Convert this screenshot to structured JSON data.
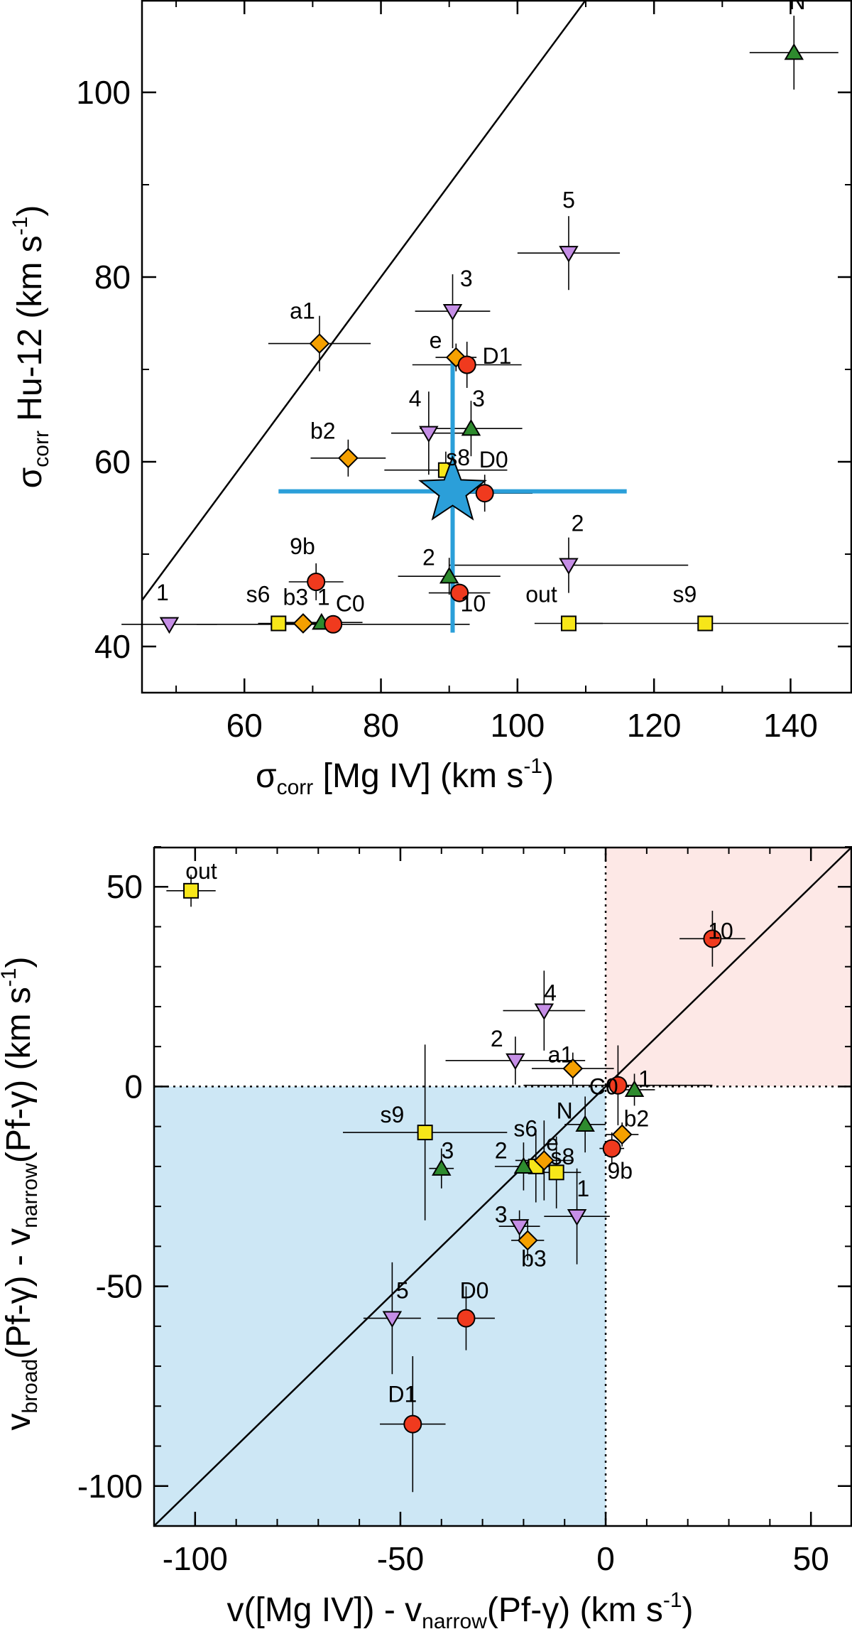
{
  "chart_data": [
    {
      "type": "scatter",
      "xlabel": {
        "main": "σ",
        "sub": "corr",
        "rest": " [Mg IV] (km s",
        "sup": "-1",
        "end": ")"
      },
      "ylabel": {
        "main": "σ",
        "sub": "corr",
        "rest": "  Hu-12 (km s",
        "sup": "-1",
        "end": ")"
      },
      "xlim": [
        45,
        149
      ],
      "ylim": [
        35,
        110
      ],
      "xticks": [
        60,
        80,
        100,
        120,
        140
      ],
      "yticks": [
        40,
        60,
        80,
        100
      ],
      "xminor": 10,
      "yminor": 10,
      "lines": [
        {
          "kind": "one-to-one",
          "from": [
            45,
            45
          ],
          "to": [
            110,
            110
          ]
        }
      ],
      "star": {
        "x": 90.5,
        "y": 56.8,
        "xerr": [
          65,
          116
        ],
        "yerr": [
          41.5,
          71.5
        ],
        "color": "#2b9fd9"
      },
      "points": [
        {
          "label": "N",
          "x": 140.5,
          "y": 104.3,
          "xerr": 6.5,
          "yerr": 4,
          "marker": "triangle-up",
          "color": "#2e8b2e",
          "lx": 141,
          "ly": 109
        },
        {
          "label": "5",
          "x": 107.5,
          "y": 82.6,
          "xerr": 7.5,
          "yerr": 4,
          "marker": "triangle-down",
          "color": "#c58ee6",
          "lx": 107.5,
          "ly": 87.5
        },
        {
          "label": "3",
          "x": 90.5,
          "y": 76.3,
          "xerr": 5.5,
          "yerr": 4,
          "marker": "triangle-down",
          "color": "#c58ee6",
          "lx": 92.5,
          "ly": 79
        },
        {
          "label": "a1",
          "x": 71,
          "y": 72.8,
          "xerr": 7.5,
          "yerr": 3,
          "marker": "diamond",
          "color": "#f5a000",
          "lx": 68.5,
          "ly": 75.5
        },
        {
          "label": "e",
          "x": 91,
          "y": 71.3,
          "xerr": 3,
          "yerr": 1.5,
          "marker": "diamond",
          "color": "#f5a000",
          "lx": 88,
          "ly": 72.3
        },
        {
          "label": "D1",
          "x": 92.6,
          "y": 70.5,
          "xerr": 8,
          "yerr": 2.5,
          "marker": "circle",
          "color": "#f03a1e",
          "lx": 97,
          "ly": 70.6
        },
        {
          "label": "4",
          "x": 87,
          "y": 63.1,
          "xerr": 5.5,
          "yerr": 4.5,
          "marker": "triangle-down",
          "color": "#c58ee6",
          "lx": 85,
          "ly": 66
        },
        {
          "label": "3",
          "x": 93.2,
          "y": 63.6,
          "xerr": 7.5,
          "yerr": 3,
          "marker": "triangle-up",
          "color": "#2e8b2e",
          "lx": 94.3,
          "ly": 66
        },
        {
          "label": "b2",
          "x": 75.2,
          "y": 60.4,
          "xerr": 5.5,
          "yerr": 2,
          "marker": "diamond",
          "color": "#f5a000",
          "lx": 71.5,
          "ly": 62.5
        },
        {
          "label": "s8",
          "x": 89.5,
          "y": 59.1,
          "xerr": 9,
          "yerr": 2,
          "marker": "square",
          "color": "#f7e619",
          "lx": 91.3,
          "ly": 59.6
        },
        {
          "label": "D0",
          "x": 95.2,
          "y": 56.6,
          "xerr": 7,
          "yerr": 2,
          "marker": "circle",
          "color": "#f03a1e",
          "lx": 96.5,
          "ly": 59.4
        },
        {
          "label": "9b",
          "x": 70.5,
          "y": 47,
          "xerr": 4,
          "yerr": 2,
          "marker": "circle",
          "color": "#f03a1e",
          "lx": 68.5,
          "ly": 50
        },
        {
          "label": "2",
          "x": 107.5,
          "y": 48.8,
          "xerr": 17.5,
          "yerr": 3,
          "marker": "triangle-down",
          "color": "#c58ee6",
          "lx": 108.8,
          "ly": 52.5
        },
        {
          "label": "2",
          "x": 90,
          "y": 47.6,
          "xerr": 7.5,
          "yerr": 2,
          "marker": "triangle-up",
          "color": "#2e8b2e",
          "lx": 87,
          "ly": 48.8
        },
        {
          "label": "10",
          "x": 91.5,
          "y": 45.8,
          "xerr": 4.5,
          "yerr": 1,
          "marker": "circle",
          "color": "#f03a1e",
          "lx": 93.5,
          "ly": 43.8
        },
        {
          "label": "1",
          "x": 49,
          "y": 42.4,
          "xerr": 7,
          "yerr": 0,
          "marker": "triangle-down",
          "color": "#c58ee6",
          "lx": 48,
          "ly": 45
        },
        {
          "label": "s6",
          "x": 65,
          "y": 42.5,
          "xerr": 3,
          "yerr": 0,
          "marker": "square",
          "color": "#f7e619",
          "lx": 62,
          "ly": 44.8
        },
        {
          "label": "b3",
          "x": 68.6,
          "y": 42.5,
          "xerr": 4,
          "yerr": 0,
          "marker": "diamond",
          "color": "#f5a000",
          "lx": 67.5,
          "ly": 44.5
        },
        {
          "label": "1",
          "x": 71.3,
          "y": 42.6,
          "xerr": 6,
          "yerr": 0,
          "marker": "triangle-up",
          "color": "#2e8b2e",
          "lx": 71.6,
          "ly": 44.5
        },
        {
          "label": "C0",
          "x": 73,
          "y": 42.4,
          "xerr": 20,
          "yerr": 0,
          "marker": "circle",
          "color": "#f03a1e",
          "lx": 75.5,
          "ly": 43.8
        },
        {
          "label": "out",
          "x": 107.5,
          "y": 42.5,
          "xerr": 5,
          "yerr": 0,
          "marker": "square",
          "color": "#f7e619",
          "lx": 103.5,
          "ly": 44.8
        },
        {
          "label": "s9",
          "x": 127.5,
          "y": 42.5,
          "xerr": 21,
          "yerr": 0,
          "marker": "square",
          "color": "#f7e619",
          "lx": 124.5,
          "ly": 44.8
        }
      ]
    },
    {
      "type": "scatter",
      "xlabel": {
        "pre": "v([Mg IV]) - v",
        "sub": "narrow",
        "rest": "(Pf-γ) (km s",
        "sup": "-1",
        "end": ")"
      },
      "ylabel": {
        "main": "v",
        "sub": "broad",
        "mid": "(Pf-γ) - v",
        "sub2": "narrow",
        "rest": "(Pf-γ) (km s",
        "sup": "-1",
        "end": ")"
      },
      "xlim": [
        -110,
        60
      ],
      "ylim": [
        -110,
        60
      ],
      "xticks": [
        -100,
        -50,
        0,
        50
      ],
      "yticks": [
        -100,
        -50,
        0,
        50
      ],
      "xminor": 10,
      "yminor": 10,
      "lines": [
        {
          "kind": "one-to-one",
          "from": [
            -110,
            -110
          ],
          "to": [
            60,
            60
          ]
        }
      ],
      "quadrants": {
        "negative": "#cde7f5",
        "positive": "#fde8e6"
      },
      "points": [
        {
          "label": "out",
          "x": -101,
          "y": 49,
          "xerr": 6,
          "yerr": 4,
          "marker": "square",
          "color": "#f7e619",
          "lx": -98.5,
          "ly": 52
        },
        {
          "label": "10",
          "x": 26,
          "y": 37,
          "xerr": 8,
          "yerr": 7,
          "marker": "circle",
          "color": "#f03a1e",
          "lx": 28,
          "ly": 37
        },
        {
          "label": "4",
          "x": -15,
          "y": 19,
          "xerr": 10,
          "yerr": 10,
          "marker": "triangle-down",
          "color": "#c58ee6",
          "lx": -13.5,
          "ly": 21.5
        },
        {
          "label": "2",
          "x": -22,
          "y": 6.5,
          "xerr": 17,
          "yerr": 6,
          "marker": "triangle-down",
          "color": "#c58ee6",
          "lx": -26.5,
          "ly": 10
        },
        {
          "label": "a1",
          "x": -8,
          "y": 4.5,
          "xerr": 10,
          "yerr": 4,
          "marker": "diamond",
          "color": "#f5a000",
          "lx": -11,
          "ly": 6
        },
        {
          "label": "C0",
          "x": 3,
          "y": 0.3,
          "xerr": 23,
          "yerr": 10,
          "marker": "circle",
          "color": "#f03a1e",
          "lx": -0.5,
          "ly": -2
        },
        {
          "label": "1",
          "x": 7,
          "y": -0.8,
          "xerr": 5,
          "yerr": 4,
          "marker": "triangle-up",
          "color": "#2e8b2e",
          "lx": 9.5,
          "ly": 0
        },
        {
          "label": "N",
          "x": -5,
          "y": -9.5,
          "xerr": 5,
          "yerr": 7,
          "marker": "triangle-up",
          "color": "#2e8b2e",
          "lx": -10,
          "ly": -8
        },
        {
          "label": "b2",
          "x": 4,
          "y": -12,
          "xerr": 4,
          "yerr": 3,
          "marker": "diamond",
          "color": "#f5a000",
          "lx": 7.5,
          "ly": -10
        },
        {
          "label": "9b",
          "x": 1.5,
          "y": -15.5,
          "xerr": 3,
          "yerr": 4,
          "marker": "circle",
          "color": "#f03a1e",
          "lx": 3.5,
          "ly": -23
        },
        {
          "label": "s9",
          "x": -44,
          "y": -11.5,
          "xerr": 20,
          "yerr": 22,
          "marker": "square",
          "color": "#f7e619",
          "lx": -52,
          "ly": -9
        },
        {
          "label": "s6",
          "x": -17,
          "y": -20,
          "xerr": 5,
          "yerr": 9,
          "marker": "square",
          "color": "#f7e619",
          "lx": -19.5,
          "ly": -12.5
        },
        {
          "label": "e",
          "x": -15,
          "y": -18.5,
          "xerr": 7,
          "yerr": 10,
          "marker": "diamond",
          "color": "#f5a000",
          "lx": -13,
          "ly": -16
        },
        {
          "label": "s8",
          "x": -12,
          "y": -21.5,
          "xerr": 6,
          "yerr": 9,
          "marker": "square",
          "color": "#f7e619",
          "lx": -10.5,
          "ly": -19.5
        },
        {
          "label": "2",
          "x": -20,
          "y": -20,
          "xerr": 7,
          "yerr": 6,
          "marker": "triangle-up",
          "color": "#2e8b2e",
          "lx": -25.5,
          "ly": -18
        },
        {
          "label": "3",
          "x": -40,
          "y": -20.5,
          "xerr": 3,
          "yerr": 5,
          "marker": "triangle-up",
          "color": "#2e8b2e",
          "lx": -38.5,
          "ly": -18
        },
        {
          "label": "3",
          "x": -21,
          "y": -35,
          "xerr": 5,
          "yerr": 4,
          "marker": "triangle-down",
          "color": "#c58ee6",
          "lx": -25.5,
          "ly": -34
        },
        {
          "label": "b3",
          "x": -19,
          "y": -38.5,
          "xerr": 4,
          "yerr": 5,
          "marker": "diamond",
          "color": "#f5a000",
          "lx": -17.5,
          "ly": -45
        },
        {
          "label": "1",
          "x": -7,
          "y": -32.5,
          "xerr": 8,
          "yerr": 12,
          "marker": "triangle-down",
          "color": "#c58ee6",
          "lx": -5.5,
          "ly": -27.5
        },
        {
          "label": "5",
          "x": -52,
          "y": -58,
          "xerr": 7,
          "yerr": 14,
          "marker": "triangle-down",
          "color": "#c58ee6",
          "lx": -49.5,
          "ly": -53
        },
        {
          "label": "D0",
          "x": -34,
          "y": -58,
          "xerr": 7,
          "yerr": 8,
          "marker": "circle",
          "color": "#f03a1e",
          "lx": -32,
          "ly": -53
        },
        {
          "label": "D1",
          "x": -47,
          "y": -84.5,
          "xerr": 8,
          "yerr": 17,
          "marker": "circle",
          "color": "#f03a1e",
          "lx": -49.5,
          "ly": -79
        }
      ]
    }
  ]
}
